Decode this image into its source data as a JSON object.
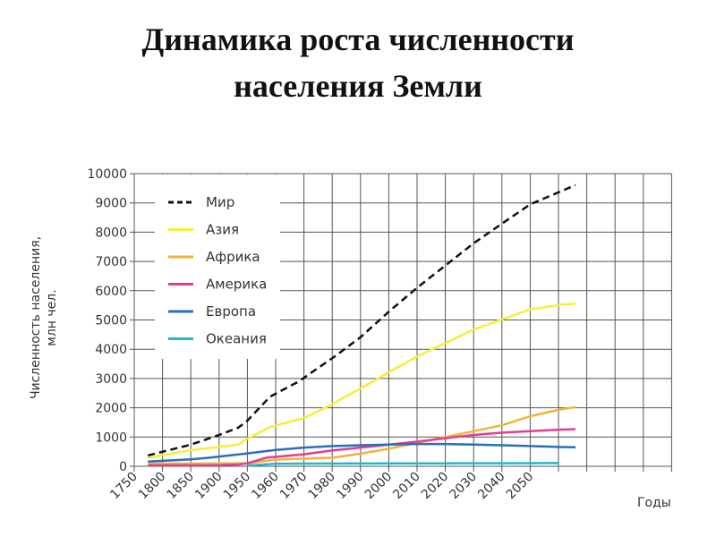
{
  "chart_data": {
    "type": "line",
    "title": [
      "Динамика роста численности",
      "населения Земли"
    ],
    "ylabel": [
      "Численность населения,",
      "млн чел."
    ],
    "xlabel": "Годы",
    "ylim": [
      0,
      10000
    ],
    "yticks": [
      0,
      1000,
      2000,
      3000,
      4000,
      5000,
      6000,
      7000,
      8000,
      9000,
      10000
    ],
    "xticks": [
      1750,
      1800,
      1850,
      1900,
      1950,
      1960,
      1970,
      1980,
      1990,
      2000,
      2010,
      2020,
      2030,
      2040,
      2050
    ],
    "xlim": [
      1750,
      2100
    ],
    "grid": true,
    "legend_position": "top-left",
    "series": [
      {
        "name": "Мир",
        "color": "#111111",
        "dashed": true,
        "x": [
          1774,
          1850,
          1900,
          1934,
          1950,
          1958,
          1968,
          1981,
          1990,
          2000,
          2010,
          2020,
          2030,
          2040,
          2050,
          2060,
          2066
        ],
        "y": [
          370,
          740,
          1070,
          1320,
          1560,
          2380,
          2890,
          3760,
          4410,
          5280,
          6100,
          6860,
          7620,
          8290,
          8950,
          9360,
          9610
        ]
      },
      {
        "name": "Азия",
        "color": "#f5ef3a",
        "x": [
          1774,
          1850,
          1934,
          1950,
          1958,
          1970,
          1980,
          1990,
          2000,
          2010,
          2020,
          2030,
          2040,
          2050,
          2060,
          2066
        ],
        "y": [
          290,
          550,
          740,
          950,
          1340,
          1650,
          2120,
          2660,
          3210,
          3750,
          4210,
          4670,
          5020,
          5360,
          5510,
          5560
        ]
      },
      {
        "name": "Африка",
        "color": "#f0b43c",
        "x": [
          1774,
          1900,
          1950,
          1960,
          1980,
          1990,
          2000,
          2010,
          2020,
          2030,
          2040,
          2050,
          2060,
          2066
        ],
        "y": [
          90,
          100,
          100,
          230,
          290,
          430,
          600,
          800,
          1000,
          1200,
          1400,
          1710,
          1930,
          2020
        ]
      },
      {
        "name": "Америка",
        "color": "#e23d8f",
        "x": [
          1774,
          1900,
          1934,
          1950,
          1957,
          1970,
          1980,
          1990,
          2000,
          2010,
          2020,
          2030,
          2040,
          2050,
          2060,
          2066
        ],
        "y": [
          30,
          40,
          60,
          100,
          300,
          410,
          540,
          640,
          740,
          840,
          960,
          1070,
          1150,
          1200,
          1250,
          1270
        ]
      },
      {
        "name": "Европа",
        "color": "#2a6fb8",
        "x": [
          1774,
          1850,
          1881,
          1950,
          1960,
          1970,
          1980,
          1990,
          2000,
          2010,
          2020,
          2030,
          2040,
          2050,
          2060,
          2066
        ],
        "y": [
          160,
          240,
          290,
          440,
          560,
          640,
          690,
          720,
          740,
          760,
          760,
          740,
          720,
          690,
          660,
          650
        ]
      },
      {
        "name": "Океания",
        "color": "#22b8cc",
        "x": [
          1950,
          1960,
          1980,
          2000,
          2020,
          2040,
          2060
        ],
        "y": [
          20,
          90,
          95,
          100,
          100,
          105,
          110
        ]
      }
    ]
  }
}
